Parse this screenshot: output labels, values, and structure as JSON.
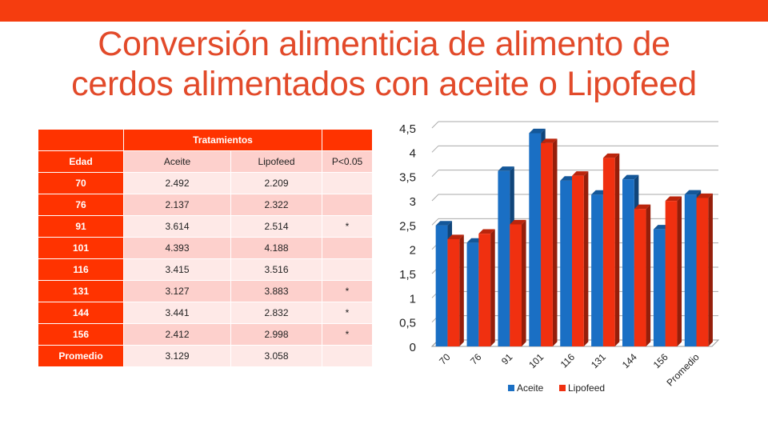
{
  "title_line1": "Conversión alimenticia de alimento de",
  "title_line2": "cerdos alimentados con aceite o Lipofeed",
  "table": {
    "group_header": "Tratamientos",
    "columns": [
      "Edad",
      "Aceite",
      "Lipofeed",
      "P<0.05"
    ],
    "rows": [
      {
        "edad": "70",
        "aceite": "2.492",
        "lipofeed": "2.209",
        "p": ""
      },
      {
        "edad": "76",
        "aceite": "2.137",
        "lipofeed": "2.322",
        "p": ""
      },
      {
        "edad": "91",
        "aceite": "3.614",
        "lipofeed": "2.514",
        "p": "*"
      },
      {
        "edad": "101",
        "aceite": "4.393",
        "lipofeed": "4.188",
        "p": ""
      },
      {
        "edad": "116",
        "aceite": "3.415",
        "lipofeed": "3.516",
        "p": ""
      },
      {
        "edad": "131",
        "aceite": "3.127",
        "lipofeed": "3.883",
        "p": "*"
      },
      {
        "edad": "144",
        "aceite": "3.441",
        "lipofeed": "2.832",
        "p": "*"
      },
      {
        "edad": "156",
        "aceite": "2.412",
        "lipofeed": "2.998",
        "p": "*"
      },
      {
        "edad": "Promedio",
        "aceite": "3.129",
        "lipofeed": "3.058",
        "p": ""
      }
    ]
  },
  "chart_data": {
    "type": "bar",
    "style": "3d-clustered-column",
    "categories": [
      "70",
      "76",
      "91",
      "101",
      "116",
      "131",
      "144",
      "156",
      "Promedio"
    ],
    "series": [
      {
        "name": "Aceite",
        "color": "#1a6fc4",
        "values": [
          2.492,
          2.137,
          3.614,
          4.393,
          3.415,
          3.127,
          3.441,
          2.412,
          3.129
        ]
      },
      {
        "name": "Lipofeed",
        "color": "#f03010",
        "values": [
          2.209,
          2.322,
          2.514,
          4.188,
          3.516,
          3.883,
          2.832,
          2.998,
          3.058
        ]
      }
    ],
    "ylim": [
      0,
      4.5
    ],
    "yticks": [
      "0",
      "0,5",
      "1",
      "1,5",
      "2",
      "2,5",
      "3",
      "3,5",
      "4",
      "4,5"
    ],
    "grid": true,
    "legend": "bottom"
  }
}
